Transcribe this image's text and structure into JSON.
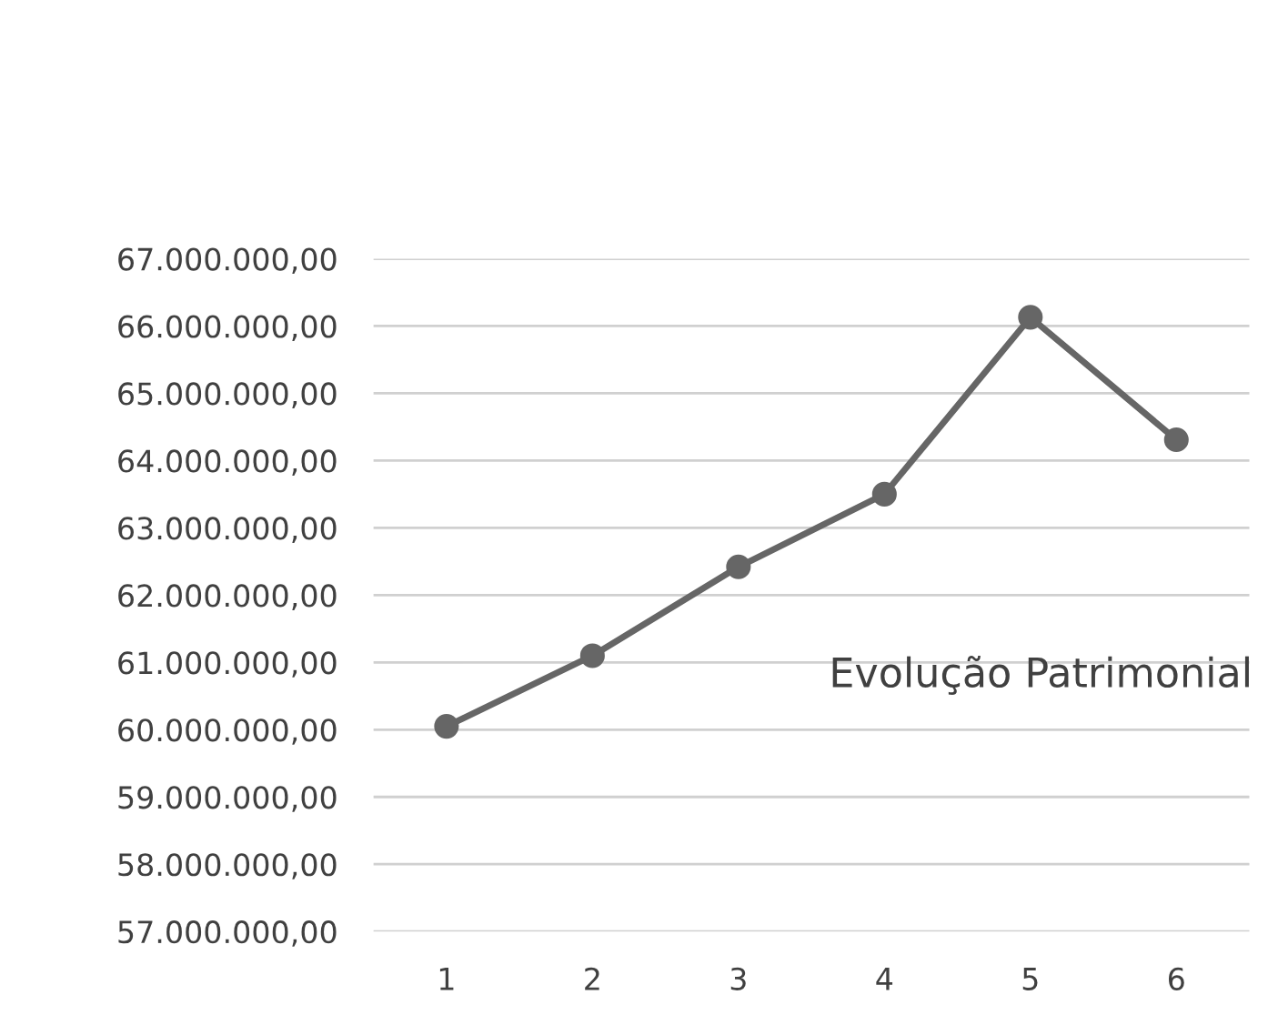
{
  "chart_data": {
    "type": "line",
    "annotations": [
      "Evolução Patrimonial"
    ],
    "categories": [
      "1",
      "2",
      "3",
      "4",
      "5",
      "6"
    ],
    "series": [
      {
        "color": "#666666",
        "values": [
          60050000,
          61100000,
          62420000,
          63500000,
          66130000,
          64310000
        ]
      }
    ],
    "ylim": [
      57000000,
      67000000
    ],
    "yticks": [
      {
        "value": 57000000,
        "label": "57.000.000,00"
      },
      {
        "value": 58000000,
        "label": "58.000.000,00"
      },
      {
        "value": 59000000,
        "label": "59.000.000,00"
      },
      {
        "value": 60000000,
        "label": "60.000.000,00"
      },
      {
        "value": 61000000,
        "label": "61.000.000,00"
      },
      {
        "value": 62000000,
        "label": "62.000.000,00"
      },
      {
        "value": 63000000,
        "label": "63.000.000,00"
      },
      {
        "value": 64000000,
        "label": "64.000.000,00"
      },
      {
        "value": 65000000,
        "label": "65.000.000,00"
      },
      {
        "value": 66000000,
        "label": "66.000.000,00"
      },
      {
        "value": 67000000,
        "label": "67.000.000,00"
      }
    ],
    "grid": "y",
    "legend": false,
    "marker": "circle",
    "line_style": "solid"
  }
}
